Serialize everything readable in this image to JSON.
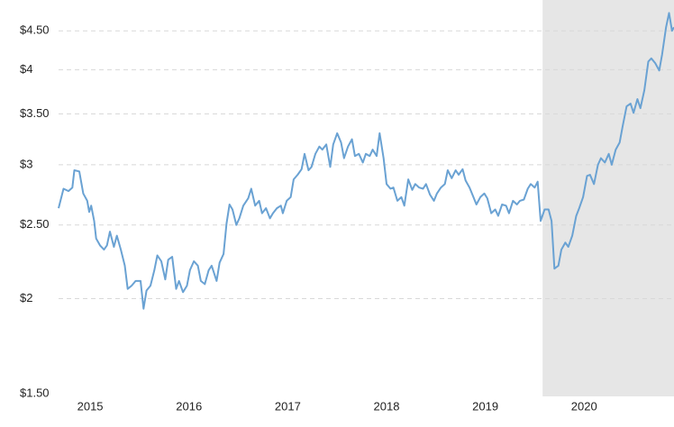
{
  "chart_data": {
    "type": "line",
    "log_y": true,
    "grid": true,
    "x": [
      2014.68,
      2014.73,
      2014.78,
      2014.82,
      2014.84,
      2014.89,
      2014.93,
      2014.97,
      2014.99,
      2015.01,
      2015.04,
      2015.06,
      2015.1,
      2015.14,
      2015.17,
      2015.2,
      2015.24,
      2015.27,
      2015.31,
      2015.35,
      2015.38,
      2015.42,
      2015.46,
      2015.51,
      2015.54,
      2015.57,
      2015.61,
      2015.65,
      2015.68,
      2015.72,
      2015.76,
      2015.79,
      2015.83,
      2015.87,
      2015.9,
      2015.94,
      2015.98,
      2016.01,
      2016.05,
      2016.09,
      2016.12,
      2016.16,
      2016.2,
      2016.23,
      2016.28,
      2016.31,
      2016.35,
      2016.38,
      2016.41,
      2016.44,
      2016.48,
      2016.51,
      2016.55,
      2016.6,
      2016.63,
      2016.67,
      2016.71,
      2016.74,
      2016.78,
      2016.82,
      2016.85,
      2016.89,
      2016.93,
      2016.95,
      2016.99,
      2017.03,
      2017.06,
      2017.1,
      2017.14,
      2017.17,
      2017.21,
      2017.24,
      2017.28,
      2017.32,
      2017.35,
      2017.39,
      2017.43,
      2017.46,
      2017.5,
      2017.54,
      2017.57,
      2017.61,
      2017.65,
      2017.68,
      2017.72,
      2017.76,
      2017.79,
      2017.83,
      2017.86,
      2017.9,
      2017.93,
      2017.97,
      2018.0,
      2018.04,
      2018.07,
      2018.11,
      2018.15,
      2018.18,
      2018.22,
      2018.26,
      2018.29,
      2018.33,
      2018.37,
      2018.4,
      2018.44,
      2018.48,
      2018.51,
      2018.55,
      2018.59,
      2018.62,
      2018.66,
      2018.7,
      2018.73,
      2018.77,
      2018.8,
      2018.84,
      2018.88,
      2018.91,
      2018.95,
      2018.99,
      2019.02,
      2019.06,
      2019.1,
      2019.13,
      2019.17,
      2019.21,
      2019.24,
      2019.28,
      2019.32,
      2019.35,
      2019.39,
      2019.43,
      2019.46,
      2019.5,
      2019.53,
      2019.56,
      2019.6,
      2019.64,
      2019.67,
      2019.7,
      2019.74,
      2019.77,
      2019.81,
      2019.84,
      2019.88,
      2019.92,
      2019.95,
      2019.99,
      2020.03,
      2020.06,
      2020.1,
      2020.14,
      2020.17,
      2020.21,
      2020.25,
      2020.28,
      2020.32,
      2020.36,
      2020.39,
      2020.43,
      2020.47,
      2020.5,
      2020.54,
      2020.57,
      2020.61,
      2020.65,
      2020.68,
      2020.72,
      2020.76,
      2020.79,
      2020.83,
      2020.86,
      2020.89,
      2020.91
    ],
    "series": [
      {
        "color": "#6aa2d3",
        "values": [
          2.63,
          2.79,
          2.77,
          2.8,
          2.95,
          2.94,
          2.75,
          2.69,
          2.6,
          2.65,
          2.53,
          2.4,
          2.35,
          2.32,
          2.35,
          2.45,
          2.34,
          2.42,
          2.32,
          2.21,
          2.06,
          2.08,
          2.11,
          2.11,
          1.94,
          2.05,
          2.08,
          2.18,
          2.28,
          2.24,
          2.12,
          2.25,
          2.27,
          2.06,
          2.11,
          2.04,
          2.08,
          2.18,
          2.24,
          2.21,
          2.11,
          2.09,
          2.18,
          2.21,
          2.11,
          2.23,
          2.29,
          2.51,
          2.66,
          2.62,
          2.5,
          2.55,
          2.65,
          2.71,
          2.79,
          2.65,
          2.69,
          2.59,
          2.63,
          2.55,
          2.59,
          2.63,
          2.65,
          2.59,
          2.69,
          2.72,
          2.87,
          2.91,
          2.96,
          3.1,
          2.95,
          2.98,
          3.1,
          3.17,
          3.14,
          3.19,
          2.98,
          3.19,
          3.3,
          3.21,
          3.06,
          3.17,
          3.24,
          3.08,
          3.1,
          3.02,
          3.1,
          3.08,
          3.14,
          3.08,
          3.3,
          3.06,
          2.83,
          2.79,
          2.8,
          2.69,
          2.72,
          2.65,
          2.87,
          2.78,
          2.83,
          2.8,
          2.79,
          2.83,
          2.74,
          2.69,
          2.75,
          2.8,
          2.83,
          2.95,
          2.88,
          2.95,
          2.91,
          2.96,
          2.86,
          2.8,
          2.72,
          2.66,
          2.72,
          2.75,
          2.71,
          2.59,
          2.62,
          2.57,
          2.66,
          2.65,
          2.59,
          2.69,
          2.66,
          2.69,
          2.7,
          2.79,
          2.83,
          2.8,
          2.85,
          2.53,
          2.62,
          2.62,
          2.53,
          2.19,
          2.21,
          2.32,
          2.37,
          2.34,
          2.42,
          2.57,
          2.63,
          2.72,
          2.9,
          2.91,
          2.83,
          3.0,
          3.06,
          3.02,
          3.1,
          3.0,
          3.14,
          3.21,
          3.37,
          3.58,
          3.61,
          3.51,
          3.66,
          3.56,
          3.76,
          4.1,
          4.14,
          4.08,
          3.99,
          4.19,
          4.55,
          4.75,
          4.5,
          4.55
        ]
      }
    ],
    "xlim": [
      2014.68,
      2020.91
    ],
    "xticks": [
      2015,
      2016,
      2017,
      2018,
      2019,
      2020
    ],
    "ylim": [
      1.5,
      4.94
    ],
    "yticks": [
      {
        "value": 1.5,
        "label": "$1.50"
      },
      {
        "value": 2,
        "label": "$2"
      },
      {
        "value": 2.5,
        "label": "$2.50"
      },
      {
        "value": 3,
        "label": "$3"
      },
      {
        "value": 3.5,
        "label": "$3.50"
      },
      {
        "value": 4,
        "label": "$4"
      },
      {
        "value": 4.5,
        "label": "$4.50"
      }
    ],
    "shaded_x": [
      2019.58,
      2020.91
    ],
    "shade_color": "#e6e6e6"
  }
}
